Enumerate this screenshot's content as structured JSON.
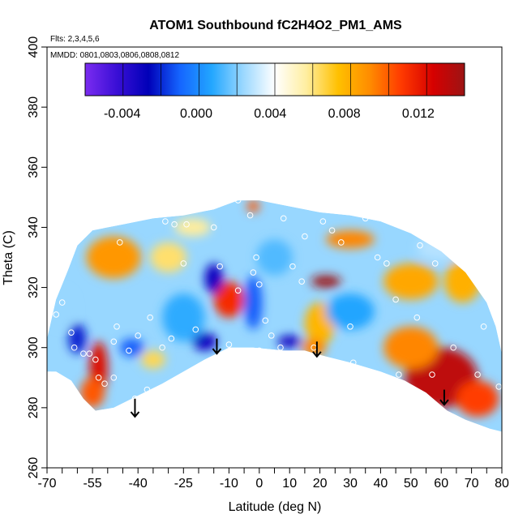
{
  "chart_data": {
    "type": "heatmap",
    "title": "ATOM1 Southbound fC2H4O2_PM1_AMS",
    "flights_note": "Flts: 2,3,4,5,6",
    "dates_note": "MMDD: 0801,0803,0806,0808,0812",
    "xlabel": "Latitude (deg N)",
    "ylabel": "Theta (C)",
    "xlim": [
      -70,
      80
    ],
    "ylim": [
      260,
      400
    ],
    "x_ticks": [
      -70,
      -55,
      -40,
      -25,
      -10,
      0,
      10,
      20,
      30,
      40,
      50,
      60,
      70,
      80
    ],
    "x_tick_labels": [
      "-70",
      "-55",
      "-40",
      "-25",
      "-10",
      "0",
      "10",
      "20",
      "30",
      "40",
      "50",
      "60",
      "70",
      "80"
    ],
    "x_minor_ticks": [
      -65,
      -60,
      -50,
      -45,
      -35,
      -30,
      -20,
      -15,
      -5,
      5,
      15,
      25,
      35,
      45,
      55,
      65,
      75
    ],
    "y_ticks": [
      260,
      280,
      300,
      320,
      340,
      360,
      380,
      400
    ],
    "y_tick_labels": [
      "260",
      "280",
      "300",
      "320",
      "340",
      "360",
      "380",
      "400"
    ],
    "colorbar": {
      "range": [
        -0.006,
        0.0145
      ],
      "ticks": [
        -0.004,
        0.0,
        0.004,
        0.008,
        0.012
      ],
      "tick_labels": [
        "-0.004",
        "0.000",
        "0.004",
        "0.008",
        "0.012"
      ],
      "colors": [
        "#7b2cf0",
        "#3a0fd6",
        "#0000b8",
        "#1565ff",
        "#22a6ff",
        "#9bd8ff",
        "#ffffff",
        "#ffeea0",
        "#ffc000",
        "#ff8c00",
        "#ff3a00",
        "#d60000",
        "#9c1414"
      ]
    },
    "domain_outline": [
      [
        -70,
        303
      ],
      [
        -67,
        316
      ],
      [
        -63,
        326
      ],
      [
        -60,
        334
      ],
      [
        -55,
        339
      ],
      [
        -45,
        341
      ],
      [
        -35,
        343
      ],
      [
        -25,
        344
      ],
      [
        -15,
        346
      ],
      [
        -7,
        349
      ],
      [
        0,
        349
      ],
      [
        10,
        347
      ],
      [
        20,
        345
      ],
      [
        30,
        344
      ],
      [
        40,
        342
      ],
      [
        50,
        338
      ],
      [
        60,
        332
      ],
      [
        68,
        325
      ],
      [
        75,
        315
      ],
      [
        78,
        307
      ],
      [
        80,
        298
      ],
      [
        80,
        272
      ],
      [
        76,
        273
      ],
      [
        68,
        276
      ],
      [
        62,
        279
      ],
      [
        55,
        285
      ],
      [
        48,
        289
      ],
      [
        40,
        292
      ],
      [
        30,
        295
      ],
      [
        22,
        297
      ],
      [
        15,
        299
      ],
      [
        8,
        299
      ],
      [
        -2,
        300
      ],
      [
        -10,
        300
      ],
      [
        -18,
        296
      ],
      [
        -25,
        292
      ],
      [
        -32,
        288
      ],
      [
        -40,
        284
      ],
      [
        -48,
        280
      ],
      [
        -54,
        279
      ],
      [
        -58,
        283
      ],
      [
        -62,
        289
      ],
      [
        -67,
        292
      ],
      [
        -70,
        292
      ]
    ],
    "gradient_blobs": [
      {
        "x": 60,
        "y": 290,
        "value": 0.0135,
        "rx": 12,
        "ry": 10
      },
      {
        "x": 72,
        "y": 283,
        "value": 0.011,
        "rx": 7,
        "ry": 6
      },
      {
        "x": 50,
        "y": 300,
        "value": 0.0095,
        "rx": 9,
        "ry": 7
      },
      {
        "x": -53,
        "y": 293,
        "value": 0.0125,
        "rx": 3,
        "ry": 9
      },
      {
        "x": -55,
        "y": 285,
        "value": 0.0105,
        "rx": 4,
        "ry": 5
      },
      {
        "x": -48,
        "y": 330,
        "value": 0.009,
        "rx": 9,
        "ry": 7
      },
      {
        "x": -30,
        "y": 330,
        "value": 0.0065,
        "rx": 6,
        "ry": 5
      },
      {
        "x": -10,
        "y": 316,
        "value": 0.0115,
        "rx": 5,
        "ry": 6
      },
      {
        "x": 22,
        "y": 322,
        "value": 0.0145,
        "rx": 5,
        "ry": 2
      },
      {
        "x": 20,
        "y": 308,
        "value": 0.008,
        "rx": 5,
        "ry": 7
      },
      {
        "x": 18,
        "y": 300,
        "value": 0.0095,
        "rx": 4,
        "ry": 3
      },
      {
        "x": 50,
        "y": 322,
        "value": 0.0085,
        "rx": 9,
        "ry": 6
      },
      {
        "x": 67,
        "y": 322,
        "value": 0.0082,
        "rx": 6,
        "ry": 7
      },
      {
        "x": 30,
        "y": 336,
        "value": 0.0095,
        "rx": 8,
        "ry": 3
      },
      {
        "x": -22,
        "y": 340,
        "value": 0.006,
        "rx": 6,
        "ry": 3
      },
      {
        "x": -35,
        "y": 296,
        "value": 0.0068,
        "rx": 4,
        "ry": 3
      },
      {
        "x": -2,
        "y": 347,
        "value": 0.0105,
        "rx": 2,
        "ry": 2
      },
      {
        "x": -60,
        "y": 303,
        "value": -0.002,
        "rx": 3,
        "ry": 5
      },
      {
        "x": -42,
        "y": 300,
        "value": -0.001,
        "rx": 4,
        "ry": 3
      },
      {
        "x": -18,
        "y": 302,
        "value": -0.003,
        "rx": 4,
        "ry": 3
      },
      {
        "x": -15,
        "y": 323,
        "value": -0.003,
        "rx": 3,
        "ry": 5
      },
      {
        "x": -2,
        "y": 315,
        "value": -0.001,
        "rx": 3,
        "ry": 9
      },
      {
        "x": 10,
        "y": 302,
        "value": -0.003,
        "rx": 4,
        "ry": 2
      },
      {
        "x": -25,
        "y": 310,
        "value": 0.001,
        "rx": 7,
        "ry": 8
      },
      {
        "x": 30,
        "y": 312,
        "value": 0.0008,
        "rx": 8,
        "ry": 6
      },
      {
        "x": 5,
        "y": 330,
        "value": 0.0015,
        "rx": 6,
        "ry": 6
      },
      {
        "x": -65,
        "y": 313,
        "value": 0.0025,
        "rx": 4,
        "ry": 6
      },
      {
        "x": 60,
        "y": 333,
        "value": 0.003,
        "rx": 8,
        "ry": 4
      }
    ],
    "sample_points": [
      [
        -69,
        291
      ],
      [
        -67,
        311
      ],
      [
        -65,
        315
      ],
      [
        -62,
        305
      ],
      [
        -61,
        300
      ],
      [
        -58,
        298
      ],
      [
        -56,
        298
      ],
      [
        -54,
        296
      ],
      [
        -53,
        290
      ],
      [
        -51,
        288
      ],
      [
        -48,
        302
      ],
      [
        -47,
        307
      ],
      [
        -46,
        335
      ],
      [
        -43,
        299
      ],
      [
        -41,
        283
      ],
      [
        -37,
        286
      ],
      [
        -36,
        310
      ],
      [
        -31,
        342
      ],
      [
        -28,
        341
      ],
      [
        -24,
        341
      ],
      [
        -25,
        328
      ],
      [
        -21,
        306
      ],
      [
        -15,
        340
      ],
      [
        -13,
        327
      ],
      [
        -10,
        301
      ],
      [
        -7,
        319
      ],
      [
        -7,
        349
      ],
      [
        -3,
        344
      ],
      [
        -2,
        325
      ],
      [
        -1,
        330
      ],
      [
        0,
        321
      ],
      [
        0,
        299
      ],
      [
        4,
        304
      ],
      [
        7,
        300
      ],
      [
        8,
        343
      ],
      [
        11,
        327
      ],
      [
        14,
        322
      ],
      [
        18,
        300
      ],
      [
        21,
        342
      ],
      [
        24,
        339
      ],
      [
        30,
        307
      ],
      [
        31,
        295
      ],
      [
        35,
        343
      ],
      [
        39,
        330
      ],
      [
        42,
        328
      ],
      [
        46,
        291
      ],
      [
        49,
        340
      ],
      [
        52,
        310
      ],
      [
        58,
        328
      ],
      [
        57,
        291
      ],
      [
        64,
        300
      ],
      [
        66,
        339
      ],
      [
        72,
        291
      ],
      [
        74,
        307
      ],
      [
        79,
        287
      ],
      [
        -48,
        290
      ],
      [
        -40,
        304
      ],
      [
        -32,
        300
      ],
      [
        -29,
        303
      ],
      [
        2,
        309
      ],
      [
        15,
        337
      ],
      [
        27,
        335
      ],
      [
        45,
        316
      ],
      [
        53,
        334
      ]
    ],
    "arrows": [
      {
        "x": -41,
        "y_from": 283,
        "y_to": 277
      },
      {
        "x": -14,
        "y_from": 303,
        "y_to": 298
      },
      {
        "x": 19,
        "y_from": 302,
        "y_to": 297
      },
      {
        "x": 61,
        "y_from": 286,
        "y_to": 281
      }
    ]
  }
}
